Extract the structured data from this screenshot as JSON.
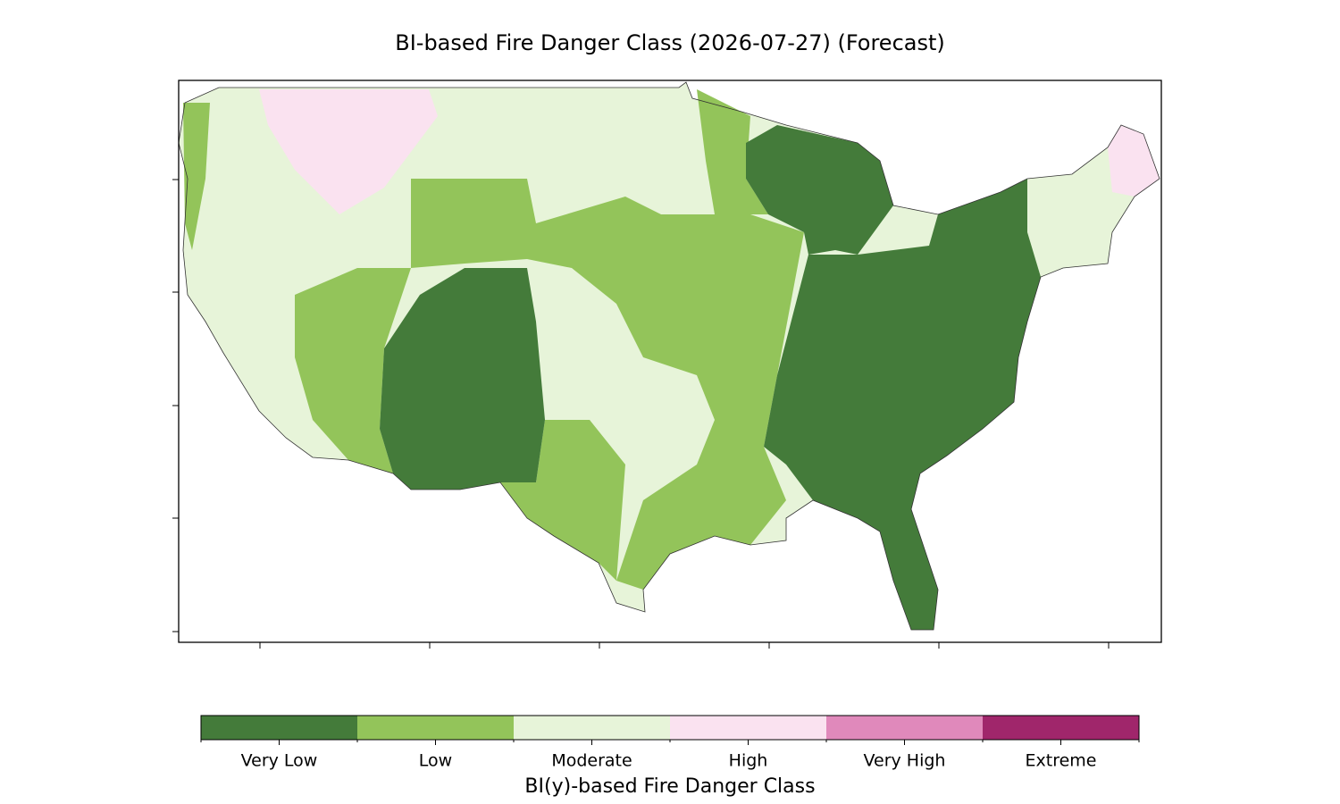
{
  "title": "BI-based Fire Danger Class (2026-07-27) (Forecast)",
  "legend": {
    "label": "BI(y)-based Fire Danger Class",
    "classes": [
      {
        "name": "Very Low",
        "color": "#447b3a"
      },
      {
        "name": "Low",
        "color": "#93c45a"
      },
      {
        "name": "Moderate",
        "color": "#e7f4d9"
      },
      {
        "name": "High",
        "color": "#fae2f0"
      },
      {
        "name": "Very High",
        "color": "#e089bb"
      },
      {
        "name": "Extreme",
        "color": "#a0266b"
      }
    ]
  }
}
